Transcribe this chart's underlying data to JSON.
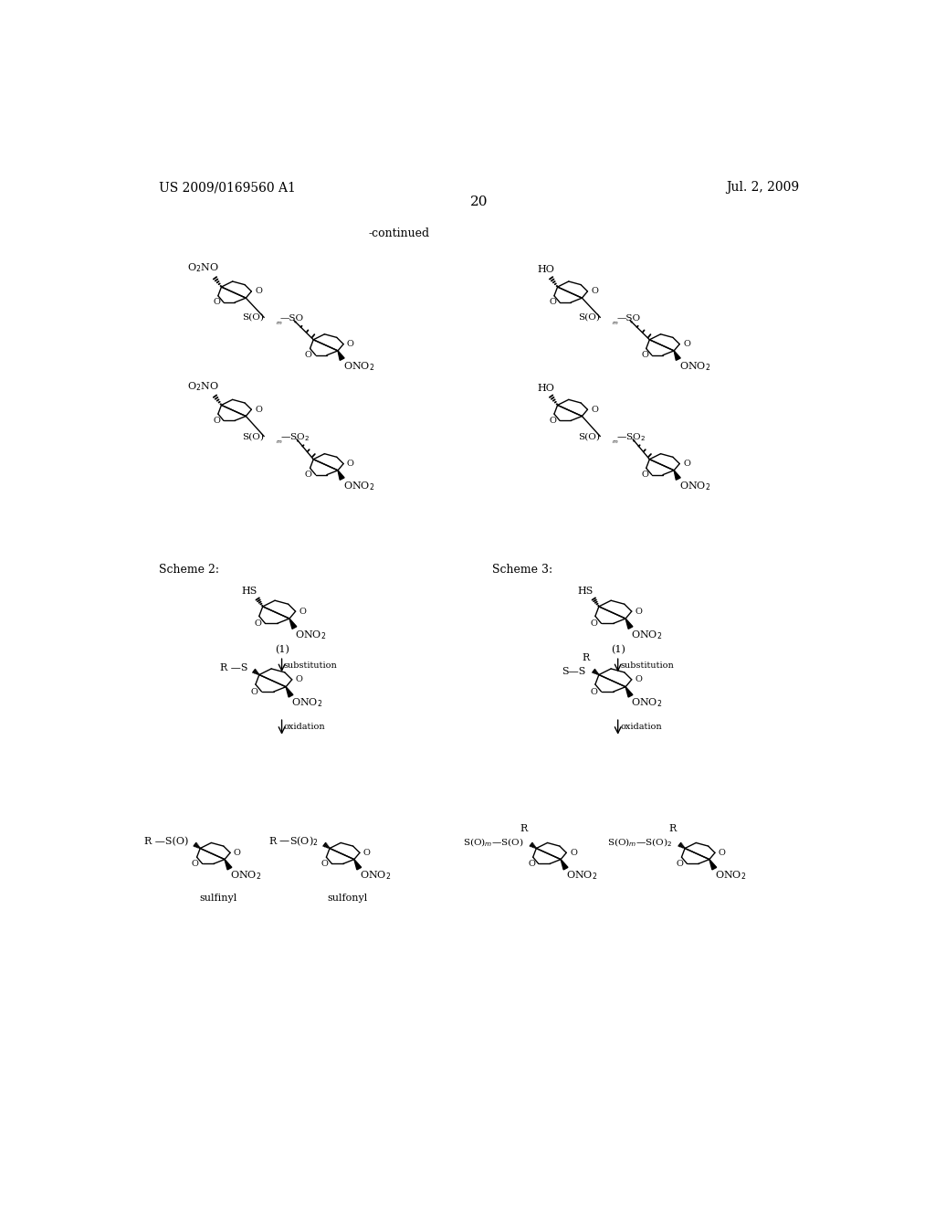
{
  "header_left": "US 2009/0169560 A1",
  "header_right": "Jul. 2, 2009",
  "page_number": "20",
  "continued_label": "-continued",
  "bg": "#ffffff"
}
